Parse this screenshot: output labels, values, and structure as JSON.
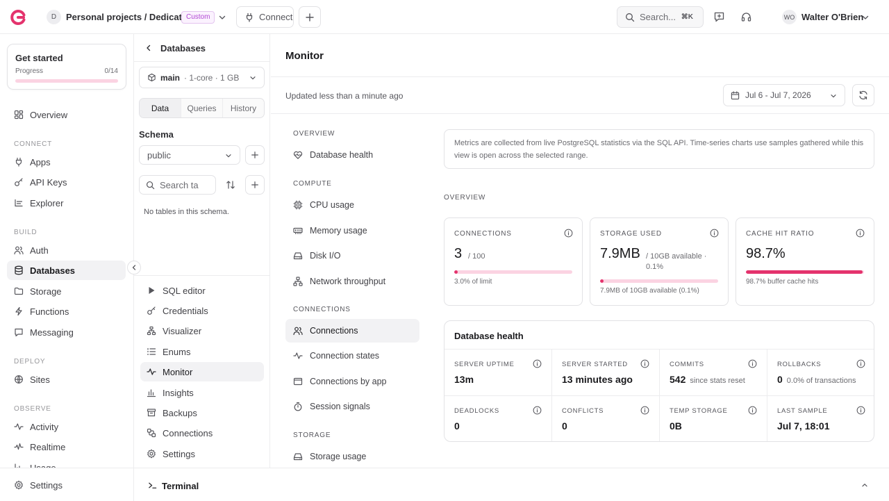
{
  "topbar": {
    "project_initial": "D",
    "project_name": "Personal projects / Dedicated",
    "plan_badge": "Custom",
    "connect_label": "Connect",
    "search_placeholder": "Search...",
    "search_shortcut": "⌘K",
    "user_initials": "WO",
    "user_name": "Walter O'Brien"
  },
  "sidebar": {
    "get_started": {
      "title": "Get started",
      "progress_label": "Progress",
      "progress_count": "0/14",
      "progress_value": 0
    },
    "overview": "Overview",
    "sections": {
      "connect": "CONNECT",
      "build": "BUILD",
      "deploy": "DEPLOY",
      "observe": "OBSERVE"
    },
    "connect_items": [
      "Apps",
      "API Keys",
      "Explorer"
    ],
    "build_items": [
      "Auth",
      "Databases",
      "Storage",
      "Functions",
      "Messaging"
    ],
    "deploy_items": [
      "Sites"
    ],
    "observe_items": [
      "Activity",
      "Realtime",
      "Usage"
    ],
    "settings": "Settings"
  },
  "dbpanel": {
    "title": "Databases",
    "branch_name": "main",
    "branch_spec": "· 1-core · 1 GB",
    "tabs": [
      "Data",
      "Queries",
      "History"
    ],
    "schema_label": "Schema",
    "schema_value": "public",
    "table_search_placeholder": "Search ta",
    "empty_text": "No tables in this schema.",
    "links": [
      "SQL editor",
      "Credentials",
      "Visualizer",
      "Enums",
      "Monitor",
      "Insights",
      "Backups",
      "Connections",
      "Settings"
    ]
  },
  "terminal": {
    "label": "Terminal"
  },
  "monitor": {
    "title": "Monitor",
    "updated": "Updated less than a minute ago",
    "date_range": "Jul 6 - Jul 7, 2026",
    "nav": {
      "overview_heading": "OVERVIEW",
      "overview_items": [
        "Database health"
      ],
      "compute_heading": "COMPUTE",
      "compute_items": [
        "CPU usage",
        "Memory usage",
        "Disk I/O",
        "Network throughput"
      ],
      "connections_heading": "CONNECTIONS",
      "connections_items": [
        "Connections",
        "Connection states",
        "Connections by app",
        "Session signals"
      ],
      "storage_heading": "STORAGE",
      "storage_items": [
        "Storage usage"
      ]
    },
    "info_text": "Metrics are collected from live PostgreSQL statistics via the SQL API. Time-series charts use samples gathered while this view is open across the selected range.",
    "overview_label": "OVERVIEW",
    "cards": [
      {
        "label": "CONNECTIONS",
        "value": "3",
        "sub": "/ 100",
        "bar_fraction": 0.03,
        "foot": "3.0% of limit"
      },
      {
        "label": "STORAGE USED",
        "value": "7.9MB",
        "sub": "/ 10GB available · 0.1%",
        "bar_fraction": 0.001,
        "foot": "7.9MB of 10GB available (0.1%)"
      },
      {
        "label": "CACHE HIT RATIO",
        "value": "98.7%",
        "sub": "",
        "bar_fraction": 0.987,
        "foot": "98.7% buffer cache hits"
      }
    ],
    "health": {
      "title": "Database health",
      "cells": [
        {
          "label": "SERVER UPTIME",
          "value": "13m",
          "note": ""
        },
        {
          "label": "SERVER STARTED",
          "value": "13 minutes ago",
          "note": ""
        },
        {
          "label": "COMMITS",
          "value": "542",
          "note": "since stats reset"
        },
        {
          "label": "ROLLBACKS",
          "value": "0",
          "note": "0.0% of transactions"
        },
        {
          "label": "DEADLOCKS",
          "value": "0",
          "note": ""
        },
        {
          "label": "CONFLICTS",
          "value": "0",
          "note": ""
        },
        {
          "label": "TEMP STORAGE",
          "value": "0B",
          "note": ""
        },
        {
          "label": "LAST SAMPLE",
          "value": "Jul 7, 18:01",
          "note": ""
        }
      ]
    }
  },
  "colors": {
    "accent": "#e4336d",
    "accent_soft": "#fbd3e2",
    "badge": "#b046d3"
  }
}
